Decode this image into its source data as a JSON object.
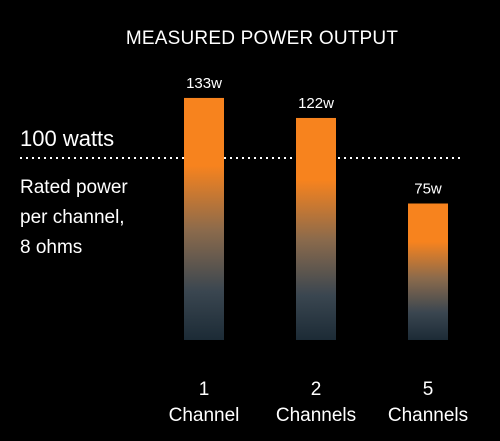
{
  "chart_data": {
    "type": "bar",
    "title": "MEASURED POWER OUTPUT",
    "categories": [
      [
        "1",
        "Channel"
      ],
      [
        "2",
        "Channels"
      ],
      [
        "5",
        "Channels"
      ]
    ],
    "values": [
      133,
      122,
      75
    ],
    "value_labels": [
      "133w",
      "122w",
      "75w"
    ],
    "reference_line": {
      "value": 100,
      "label": "100 watts",
      "note": [
        "Rated power",
        "per channel,",
        "8 ohms"
      ]
    },
    "ylim": [
      0,
      140
    ],
    "grid": false,
    "colors": {
      "bar_top": "#f7831e",
      "bar_bottom": "#1c2b36",
      "background": "#000000",
      "text": "#ffffff"
    }
  }
}
